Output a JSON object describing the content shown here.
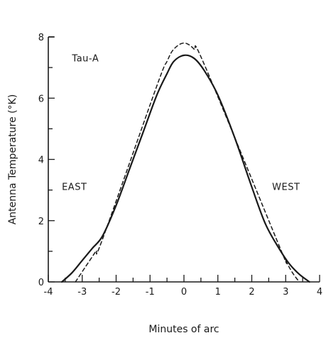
{
  "chart_data": {
    "type": "line",
    "xlabel": "Minutes of arc",
    "ylabel": "Antenna Temperature (°K)",
    "xlim": [
      -4,
      4
    ],
    "ylim": [
      0,
      8
    ],
    "x_ticks": [
      -4,
      -3,
      -2,
      -1,
      0,
      1,
      2,
      3,
      4
    ],
    "x_tick_labels": [
      "-4",
      "-3",
      "-2",
      "-1",
      "0",
      "1",
      "2",
      "3",
      "4"
    ],
    "y_ticks": [
      0,
      2,
      4,
      6,
      8
    ],
    "y_tick_labels": [
      "0",
      "2",
      "4",
      "6",
      "8"
    ],
    "grid": false,
    "annotations": [
      {
        "text": "Tau-A",
        "x": -3.3,
        "y": 7.2
      },
      {
        "text": "EAST",
        "x": -3.6,
        "y": 3.0
      },
      {
        "text": "WEST",
        "x": 2.6,
        "y": 3.0
      }
    ],
    "series": [
      {
        "style": "solid",
        "x": [
          -3.6,
          -3.3,
          -3.0,
          -2.7,
          -2.4,
          -2.0,
          -1.6,
          -1.2,
          -0.8,
          -0.5,
          -0.3,
          0.0,
          0.3,
          0.6,
          1.0,
          1.5,
          2.0,
          2.4,
          2.8,
          3.1,
          3.4,
          3.7
        ],
        "y": [
          0.0,
          0.3,
          0.7,
          1.1,
          1.5,
          2.5,
          3.7,
          4.9,
          6.1,
          6.8,
          7.2,
          7.4,
          7.3,
          6.9,
          6.1,
          4.7,
          3.1,
          1.9,
          1.1,
          0.6,
          0.25,
          0.0
        ]
      },
      {
        "style": "dashed",
        "x": [
          -3.2,
          -2.9,
          -2.6,
          -2.4,
          -0.8,
          -0.5,
          -0.3,
          0.0,
          0.3,
          0.6,
          2.8,
          3.0,
          3.2,
          3.4
        ],
        "y": [
          0.0,
          0.5,
          1.0,
          1.4,
          6.4,
          7.2,
          7.6,
          7.8,
          7.6,
          7.1,
          1.2,
          0.7,
          0.3,
          0.0
        ]
      }
    ]
  }
}
